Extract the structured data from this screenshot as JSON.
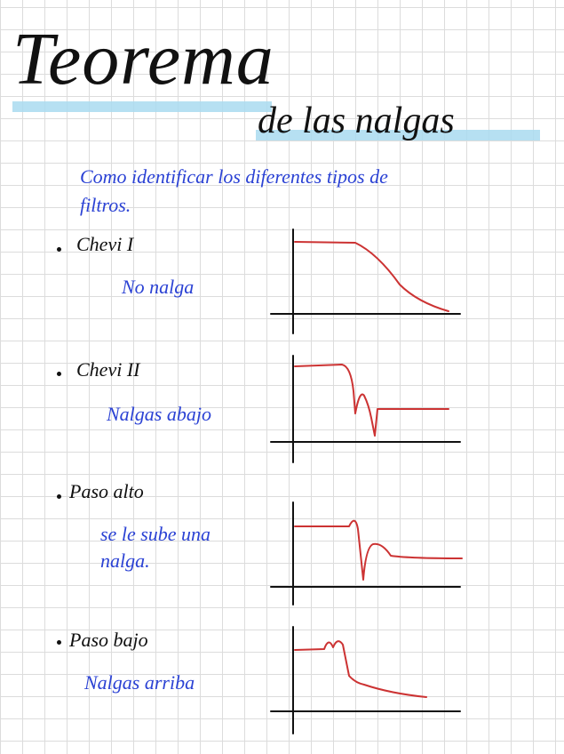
{
  "title": {
    "line1": "Teorema",
    "line2": "de las nalgas"
  },
  "intro": {
    "line1": "Como identificar los diferentes tipos de",
    "line2": "filtros."
  },
  "items": [
    {
      "label": "Chevi I",
      "note": [
        "No nalga"
      ]
    },
    {
      "label": "Chevi II",
      "note": [
        "Nalgas abajo"
      ]
    },
    {
      "label": "Paso alto",
      "note": [
        "se le sube una",
        "nalga."
      ]
    },
    {
      "label": "Paso bajo",
      "note": [
        "Nalgas arriba"
      ]
    }
  ]
}
